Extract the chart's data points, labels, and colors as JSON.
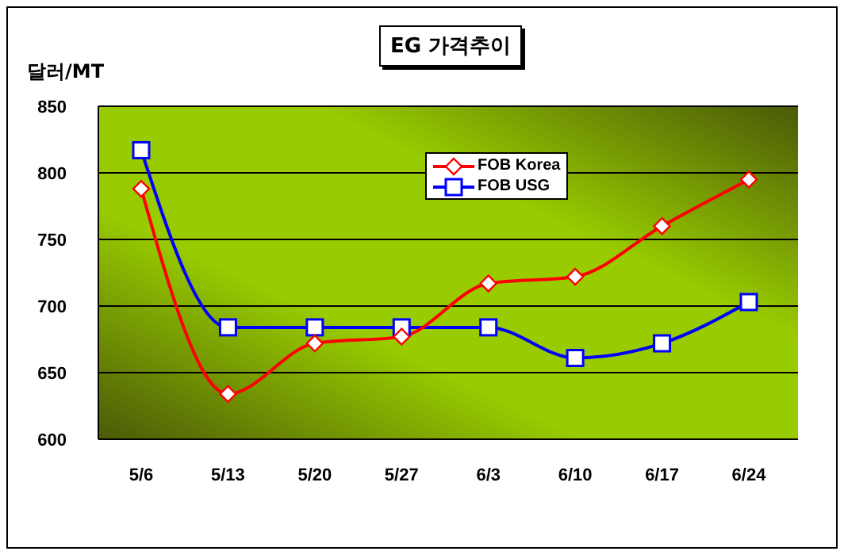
{
  "chart_data": {
    "type": "line",
    "title": "EG 가격추이",
    "ylabel": "달러/MT",
    "categories": [
      "5/6",
      "5/13",
      "5/20",
      "5/27",
      "6/3",
      "6/10",
      "6/17",
      "6/24"
    ],
    "series": [
      {
        "name": "FOB Korea",
        "color": "#ff0000",
        "marker": "diamond",
        "values": [
          788,
          634,
          672,
          677,
          717,
          722,
          760,
          795
        ]
      },
      {
        "name": "FOB USG",
        "color": "#0000ff",
        "marker": "square",
        "values": [
          817,
          684,
          684,
          684,
          684,
          661,
          672,
          703
        ]
      }
    ],
    "ylim": [
      600,
      850
    ],
    "yticks": [
      600,
      650,
      700,
      750,
      800,
      850
    ],
    "grid": "y",
    "legend": "top",
    "line_style": "solid"
  }
}
